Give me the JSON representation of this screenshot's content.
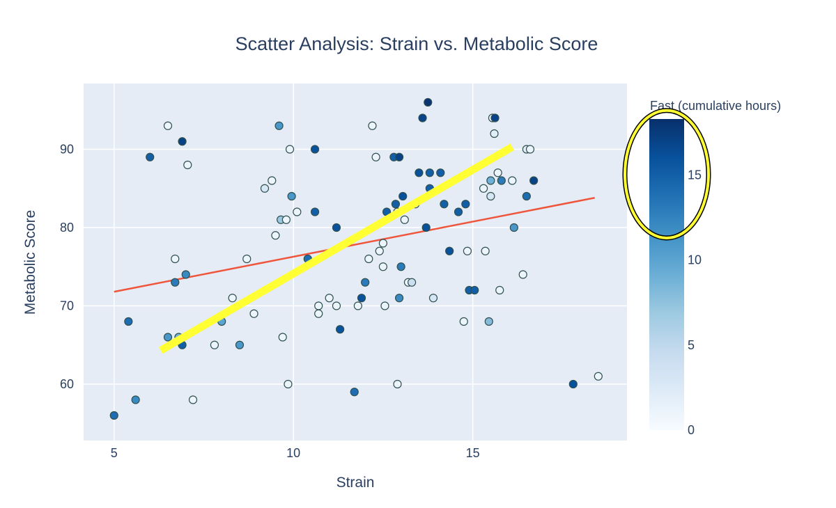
{
  "chart_data": {
    "type": "scatter",
    "title": "Scatter Analysis: Strain vs. Metabolic Score",
    "xlabel": "Strain",
    "ylabel": "Metabolic Score",
    "xlim": [
      4.15,
      19.3
    ],
    "ylim": [
      52.8,
      98.4
    ],
    "xticks": [
      5,
      10,
      15
    ],
    "yticks": [
      60,
      70,
      80,
      90
    ],
    "grid": true,
    "colors": {
      "plot_bg": "#e5ecf6",
      "grid": "#ffffff",
      "trend_line": "#ef553b",
      "annotation": "#ffff33",
      "marker_edge": "#2f4f4f",
      "text": "#2a3f5f"
    },
    "colorbar": {
      "title": "Fast (cumulative hours)",
      "range": [
        0,
        18.3
      ],
      "ticks": [
        0,
        5,
        10,
        15
      ],
      "colorscale": [
        "#f7fbff",
        "#deebf7",
        "#c6dbef",
        "#9ecae1",
        "#6baed6",
        "#4292c6",
        "#2171b5",
        "#08519c",
        "#08306b"
      ]
    },
    "trend_line": {
      "x": [
        5,
        18.4
      ],
      "y": [
        71.8,
        83.8
      ]
    },
    "annotation_line": {
      "x": [
        6.3,
        16.1
      ],
      "y": [
        64.3,
        90.3
      ]
    },
    "annotation_ellipse": {
      "around": "colorbar",
      "value_range": [
        11.3,
        18.8
      ]
    },
    "points": [
      {
        "x": 5.0,
        "y": 56,
        "fast": 14
      },
      {
        "x": 5.4,
        "y": 68,
        "fast": 14
      },
      {
        "x": 5.6,
        "y": 58,
        "fast": 12
      },
      {
        "x": 6.0,
        "y": 89,
        "fast": 15
      },
      {
        "x": 6.5,
        "y": 93,
        "fast": 1
      },
      {
        "x": 6.5,
        "y": 66,
        "fast": 11
      },
      {
        "x": 6.7,
        "y": 76,
        "fast": 1
      },
      {
        "x": 6.7,
        "y": 73,
        "fast": 13
      },
      {
        "x": 6.8,
        "y": 66,
        "fast": 9
      },
      {
        "x": 6.9,
        "y": 91,
        "fast": 17
      },
      {
        "x": 6.9,
        "y": 65,
        "fast": 15
      },
      {
        "x": 7.0,
        "y": 74,
        "fast": 12
      },
      {
        "x": 7.05,
        "y": 88,
        "fast": 1
      },
      {
        "x": 7.2,
        "y": 58,
        "fast": 1
      },
      {
        "x": 7.8,
        "y": 65,
        "fast": 1
      },
      {
        "x": 8.0,
        "y": 68,
        "fast": 10
      },
      {
        "x": 8.3,
        "y": 71,
        "fast": 1
      },
      {
        "x": 8.5,
        "y": 65,
        "fast": 11
      },
      {
        "x": 8.7,
        "y": 76,
        "fast": 1
      },
      {
        "x": 8.9,
        "y": 69,
        "fast": 1
      },
      {
        "x": 9.2,
        "y": 85,
        "fast": 3
      },
      {
        "x": 9.4,
        "y": 86,
        "fast": 1
      },
      {
        "x": 9.5,
        "y": 79,
        "fast": 1
      },
      {
        "x": 9.6,
        "y": 93,
        "fast": 11
      },
      {
        "x": 9.65,
        "y": 81,
        "fast": 7
      },
      {
        "x": 9.7,
        "y": 66,
        "fast": 1
      },
      {
        "x": 9.8,
        "y": 81,
        "fast": 1
      },
      {
        "x": 9.85,
        "y": 60,
        "fast": 1
      },
      {
        "x": 9.9,
        "y": 90,
        "fast": 1
      },
      {
        "x": 9.95,
        "y": 84,
        "fast": 11
      },
      {
        "x": 10.1,
        "y": 82,
        "fast": 1
      },
      {
        "x": 10.4,
        "y": 76,
        "fast": 14
      },
      {
        "x": 10.6,
        "y": 90,
        "fast": 16
      },
      {
        "x": 10.6,
        "y": 82,
        "fast": 15
      },
      {
        "x": 10.7,
        "y": 70,
        "fast": 1
      },
      {
        "x": 10.7,
        "y": 69,
        "fast": 1
      },
      {
        "x": 11.0,
        "y": 71,
        "fast": 1
      },
      {
        "x": 11.2,
        "y": 80,
        "fast": 16
      },
      {
        "x": 11.2,
        "y": 70,
        "fast": 1
      },
      {
        "x": 11.3,
        "y": 67,
        "fast": 16
      },
      {
        "x": 11.7,
        "y": 59,
        "fast": 14
      },
      {
        "x": 11.8,
        "y": 70,
        "fast": 1
      },
      {
        "x": 11.9,
        "y": 71,
        "fast": 16
      },
      {
        "x": 12.0,
        "y": 73,
        "fast": 13
      },
      {
        "x": 12.1,
        "y": 76,
        "fast": 1
      },
      {
        "x": 12.2,
        "y": 93,
        "fast": 1
      },
      {
        "x": 12.3,
        "y": 89,
        "fast": 1
      },
      {
        "x": 12.4,
        "y": 77,
        "fast": 1
      },
      {
        "x": 12.5,
        "y": 78,
        "fast": 1
      },
      {
        "x": 12.5,
        "y": 75,
        "fast": 1
      },
      {
        "x": 12.55,
        "y": 70,
        "fast": 1
      },
      {
        "x": 12.6,
        "y": 82,
        "fast": 15
      },
      {
        "x": 12.8,
        "y": 89,
        "fast": 15
      },
      {
        "x": 12.85,
        "y": 83,
        "fast": 15
      },
      {
        "x": 12.9,
        "y": 82,
        "fast": 2
      },
      {
        "x": 12.9,
        "y": 60,
        "fast": 1
      },
      {
        "x": 12.95,
        "y": 89,
        "fast": 17
      },
      {
        "x": 12.95,
        "y": 71,
        "fast": 12
      },
      {
        "x": 13.0,
        "y": 75,
        "fast": 13
      },
      {
        "x": 13.05,
        "y": 84,
        "fast": 16
      },
      {
        "x": 13.1,
        "y": 81,
        "fast": 1
      },
      {
        "x": 13.2,
        "y": 73,
        "fast": 1
      },
      {
        "x": 13.3,
        "y": 73,
        "fast": 4
      },
      {
        "x": 13.4,
        "y": 83,
        "fast": 1
      },
      {
        "x": 13.5,
        "y": 87,
        "fast": 16
      },
      {
        "x": 13.6,
        "y": 94,
        "fast": 17
      },
      {
        "x": 13.7,
        "y": 80,
        "fast": 16
      },
      {
        "x": 13.75,
        "y": 96,
        "fast": 18
      },
      {
        "x": 13.8,
        "y": 87,
        "fast": 15
      },
      {
        "x": 13.8,
        "y": 85,
        "fast": 15
      },
      {
        "x": 13.9,
        "y": 71,
        "fast": 3
      },
      {
        "x": 14.1,
        "y": 87,
        "fast": 15
      },
      {
        "x": 14.2,
        "y": 83,
        "fast": 15
      },
      {
        "x": 14.35,
        "y": 77,
        "fast": 16
      },
      {
        "x": 14.6,
        "y": 82,
        "fast": 15
      },
      {
        "x": 14.75,
        "y": 68,
        "fast": 1
      },
      {
        "x": 14.8,
        "y": 83,
        "fast": 15
      },
      {
        "x": 14.85,
        "y": 77,
        "fast": 1
      },
      {
        "x": 14.9,
        "y": 72,
        "fast": 15
      },
      {
        "x": 15.05,
        "y": 72,
        "fast": 15
      },
      {
        "x": 15.3,
        "y": 85,
        "fast": 1
      },
      {
        "x": 15.35,
        "y": 77,
        "fast": 1
      },
      {
        "x": 15.45,
        "y": 68,
        "fast": 8
      },
      {
        "x": 15.5,
        "y": 86,
        "fast": 9
      },
      {
        "x": 15.5,
        "y": 84,
        "fast": 3
      },
      {
        "x": 15.55,
        "y": 94,
        "fast": 1
      },
      {
        "x": 15.6,
        "y": 92,
        "fast": 2
      },
      {
        "x": 15.62,
        "y": 94,
        "fast": 17
      },
      {
        "x": 15.7,
        "y": 87,
        "fast": 1
      },
      {
        "x": 15.75,
        "y": 72,
        "fast": 1
      },
      {
        "x": 15.8,
        "y": 86,
        "fast": 13
      },
      {
        "x": 16.1,
        "y": 86,
        "fast": 1
      },
      {
        "x": 16.15,
        "y": 80,
        "fast": 11
      },
      {
        "x": 16.4,
        "y": 74,
        "fast": 1
      },
      {
        "x": 16.5,
        "y": 84,
        "fast": 14
      },
      {
        "x": 16.5,
        "y": 90,
        "fast": 2
      },
      {
        "x": 16.6,
        "y": 90,
        "fast": 1
      },
      {
        "x": 16.7,
        "y": 86,
        "fast": 17
      },
      {
        "x": 17.8,
        "y": 60,
        "fast": 16
      },
      {
        "x": 18.5,
        "y": 61,
        "fast": 1
      }
    ]
  }
}
